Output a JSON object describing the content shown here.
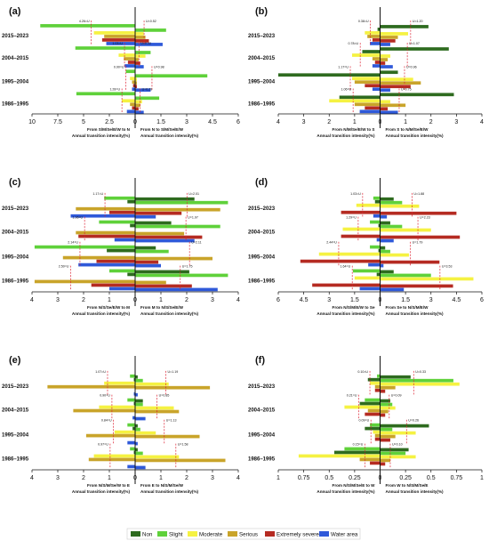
{
  "legend": {
    "placement": "bottom-center",
    "items": [
      {
        "key": "non",
        "label": "Non",
        "color": "#2e6b1f"
      },
      {
        "key": "slight",
        "label": "Slight",
        "color": "#5fd13a"
      },
      {
        "key": "moderate",
        "label": "Moderate",
        "color": "#f5f242"
      },
      {
        "key": "serious",
        "label": "Serious",
        "color": "#c9a42a"
      },
      {
        "key": "extreme",
        "label": "Extremely severe",
        "color": "#b52b22"
      },
      {
        "key": "water",
        "label": "Water area",
        "color": "#2f59d9"
      }
    ]
  },
  "chart_data": [
    {
      "id": "a",
      "panel_label": "(a)",
      "type": "bar",
      "categories": [
        "2015–2023",
        "2004–2015",
        "1995–2004",
        "1986–1995"
      ],
      "left_xlim": [
        10,
        0
      ],
      "right_xlim": [
        0,
        6
      ],
      "left_ticks": [
        "10",
        "7.5",
        "5",
        "2.5",
        "0"
      ],
      "right_ticks": [
        "1.5",
        "3",
        "4.5",
        "6"
      ],
      "left_xlabel": [
        "From S/M/Se/E/W to N",
        "Annual transition intensity(%)"
      ],
      "right_xlabel": [
        "From N to S/M/Se/E/W",
        "Annual transition intensity(%)"
      ],
      "uniform_left": [
        {
          "label": "4.26=U",
          "value": 4.26
        },
        {
          "label": "1.03=U",
          "value": 1.03
        },
        {
          "label": "0.90=U",
          "value": 0.9
        },
        {
          "label": "1.28=U",
          "value": 1.28
        }
      ],
      "uniform_right": [
        {
          "label": "U=0.52",
          "value": 0.52
        },
        {
          "label": "U=0.22",
          "value": 0.22
        },
        {
          "label": "U=0.98",
          "value": 0.98
        },
        {
          "label": "U=0.29",
          "value": 0.29
        }
      ],
      "bars": [
        {
          "left": {
            "water": 2.8,
            "extreme": 3.2,
            "serious": 3.0,
            "moderate": 4.0,
            "slight": 9.2
          },
          "right": {
            "water": 1.6,
            "extreme": 0.8,
            "serious": 0.6,
            "moderate": 0.5,
            "slight": 1.8
          }
        },
        {
          "left": {
            "water": 1.0,
            "extreme": 0.7,
            "serious": 1.1,
            "moderate": 1.6,
            "slight": 5.8
          },
          "right": {
            "water": 0.5,
            "extreme": 0.3,
            "serious": 0.2,
            "moderate": 0.6,
            "slight": 0.9
          }
        },
        {
          "left": {
            "water": 0.3,
            "extreme": 0.2,
            "serious": 0.3,
            "moderate": 0.5,
            "slight": 0.9
          },
          "right": {
            "water": 0.9,
            "extreme": 0.1,
            "serious": 0.1,
            "moderate": 0.1,
            "slight": 4.2
          }
        },
        {
          "left": {
            "water": 0.8,
            "extreme": 0.3,
            "serious": 0.5,
            "moderate": 1.3,
            "slight": 5.7
          },
          "right": {
            "water": 0.5,
            "extreme": 0.2,
            "serious": 0.3,
            "moderate": 0.4,
            "slight": 1.4
          }
        }
      ]
    },
    {
      "id": "b",
      "panel_label": "(b)",
      "type": "bar",
      "categories": [
        "2015–2023",
        "2004–2015",
        "1995–2004",
        "1986–1995"
      ],
      "left_xlim": [
        4,
        0
      ],
      "right_xlim": [
        0,
        4
      ],
      "left_ticks": [
        "4",
        "3",
        "2",
        "1",
        "0"
      ],
      "right_ticks": [
        "1",
        "2",
        "3",
        "4"
      ],
      "left_xlabel": [
        "From N/M/Se/E/W to S",
        "Annual transition intensity(%)"
      ],
      "right_xlabel": [
        "From S to N/M/Se/E/W",
        "Annual transition intensity(%)"
      ],
      "uniform_left": [
        {
          "label": "0.38=U",
          "value": 0.38
        },
        {
          "label": "0.78=U",
          "value": 0.78
        },
        {
          "label": "1.17=U",
          "value": 1.17
        },
        {
          "label": "1.06=U",
          "value": 1.06
        }
      ],
      "uniform_right": [
        {
          "label": "U=1.20",
          "value": 1.2
        },
        {
          "label": "U=1.07",
          "value": 1.07
        },
        {
          "label": "U=0.96",
          "value": 0.96
        },
        {
          "label": "U=0.75",
          "value": 0.75
        }
      ],
      "bars": [
        {
          "left": {
            "water": 0.4,
            "extreme": 0.3,
            "serious": 0.5,
            "moderate": 0.6,
            "non": 0.1
          },
          "right": {
            "water": 0.4,
            "extreme": 0.6,
            "serious": 0.7,
            "moderate": 1.1,
            "non": 1.9
          }
        },
        {
          "left": {
            "water": 0.3,
            "extreme": 0.2,
            "serious": 0.3,
            "moderate": 1.1,
            "non": 0.7
          },
          "right": {
            "water": 0.5,
            "extreme": 0.2,
            "serious": 0.3,
            "moderate": 0.4,
            "non": 2.7
          }
        },
        {
          "left": {
            "water": 0.3,
            "extreme": 0.6,
            "serious": 1.0,
            "moderate": 1.1,
            "non": 4.0
          },
          "right": {
            "water": 0.4,
            "extreme": 1.2,
            "serious": 1.6,
            "moderate": 1.3,
            "non": 0.7
          }
        },
        {
          "left": {
            "water": 0.8,
            "extreme": 0.6,
            "serious": 1.0,
            "moderate": 2.0,
            "non": 1.6
          },
          "right": {
            "water": 0.7,
            "extreme": 0.3,
            "serious": 1.0,
            "moderate": 0.4,
            "non": 2.9
          }
        }
      ]
    },
    {
      "id": "c",
      "panel_label": "(c)",
      "type": "bar",
      "categories": [
        "2015–2023",
        "2004–2015",
        "1995–2004",
        "1986–1995"
      ],
      "left_xlim": [
        4,
        0
      ],
      "right_xlim": [
        0,
        4
      ],
      "left_ticks": [
        "4",
        "3",
        "2",
        "1",
        "0"
      ],
      "right_ticks": [
        "1",
        "2",
        "3",
        "4"
      ],
      "left_xlabel": [
        "From N/S/Se/E/W to M",
        "Annual transition intensity(%)"
      ],
      "right_xlabel": [
        "From M to N/S/Se/E/W",
        "Annual transition intensity(%)"
      ],
      "uniform_left": [
        {
          "label": "1.17=U",
          "value": 1.17
        },
        {
          "label": "1.96=U",
          "value": 1.96
        },
        {
          "label": "2.14=U",
          "value": 2.14
        },
        {
          "label": "2.50=U",
          "value": 2.5
        }
      ],
      "uniform_right": [
        {
          "label": "U=2.01",
          "value": 2.01
        },
        {
          "label": "U=1.97",
          "value": 1.97
        },
        {
          "label": "U=2.11",
          "value": 2.11
        },
        {
          "label": "U=1.75",
          "value": 1.75
        }
      ],
      "bars": [
        {
          "left": {
            "water": 2.5,
            "extreme": 1.0,
            "serious": 2.3,
            "slight": 1.2,
            "non": 0.3
          },
          "right": {
            "water": 0.8,
            "extreme": 1.8,
            "serious": 3.3,
            "slight": 3.6,
            "non": 2.3
          }
        },
        {
          "left": {
            "water": 0.8,
            "extreme": 2.2,
            "serious": 2.3,
            "slight": 1.4,
            "non": 0.2
          },
          "right": {
            "water": 2.3,
            "extreme": 2.6,
            "serious": 1.9,
            "slight": 3.3,
            "non": 1.4
          }
        },
        {
          "left": {
            "water": 2.2,
            "extreme": 1.5,
            "serious": 2.8,
            "slight": 3.9,
            "non": 1.1
          },
          "right": {
            "water": 1.0,
            "extreme": 0.9,
            "serious": 3.0,
            "slight": 1.3,
            "non": 0.8
          }
        },
        {
          "left": {
            "water": 1.0,
            "extreme": 1.7,
            "serious": 3.9,
            "slight": 1.0,
            "non": 0.3
          },
          "right": {
            "water": 3.2,
            "extreme": 2.2,
            "serious": 1.2,
            "slight": 3.6,
            "non": 2.1
          }
        }
      ]
    },
    {
      "id": "d",
      "panel_label": "(d)",
      "type": "bar",
      "categories": [
        "2015–2023",
        "2004–2015",
        "1995–2004",
        "1986–1995"
      ],
      "left_xlim": [
        6,
        0
      ],
      "right_xlim": [
        0,
        6
      ],
      "left_ticks": [
        "6",
        "4.5",
        "3",
        "1.5",
        "0"
      ],
      "right_ticks": [
        "1.5",
        "3",
        "4.5",
        "6"
      ],
      "left_xlabel": [
        "From N/S/M/E/W to Se",
        "Annual transition intensity(%)"
      ],
      "right_xlabel": [
        "From Se to N/S/M/E/W",
        "Annual transition intensity(%)"
      ],
      "uniform_left": [
        {
          "label": "1.03=U",
          "value": 1.03
        },
        {
          "label": "1.29=U",
          "value": 1.29
        },
        {
          "label": "2.44=U",
          "value": 2.44
        },
        {
          "label": "1.64=U",
          "value": 1.64
        }
      ],
      "uniform_right": [
        {
          "label": "U=1.88",
          "value": 1.88
        },
        {
          "label": "U=2.23",
          "value": 2.23
        },
        {
          "label": "U=1.79",
          "value": 1.79
        },
        {
          "label": "U=3.53",
          "value": 3.53
        }
      ],
      "bars": [
        {
          "left": {
            "water": 0.4,
            "extreme": 2.3,
            "moderate": 1.4,
            "slight": 0.4,
            "non": 0.3
          },
          "right": {
            "water": 0.4,
            "extreme": 4.5,
            "moderate": 2.3,
            "slight": 1.3,
            "non": 0.8
          }
        },
        {
          "left": {
            "water": 0.2,
            "extreme": 2.3,
            "moderate": 2.2,
            "slight": 0.6,
            "non": 0.1
          },
          "right": {
            "water": 0.8,
            "extreme": 4.7,
            "moderate": 3.0,
            "slight": 1.3,
            "non": 0.6
          }
        },
        {
          "left": {
            "water": 0.7,
            "extreme": 4.7,
            "moderate": 3.6,
            "slight": 0.6,
            "non": 0.1
          },
          "right": {
            "water": 0.2,
            "extreme": 3.5,
            "moderate": 1.7,
            "slight": 0.6,
            "non": 0.3
          }
        },
        {
          "left": {
            "water": 1.2,
            "extreme": 4.0,
            "moderate": 1.5,
            "slight": 1.6,
            "non": 0.2
          },
          "right": {
            "water": 1.4,
            "extreme": 4.3,
            "moderate": 5.5,
            "slight": 3.0,
            "non": 0.8
          }
        }
      ]
    },
    {
      "id": "e",
      "panel_label": "(e)",
      "type": "bar",
      "categories": [
        "2015–2023",
        "2004–2015",
        "1995–2004",
        "1986–1995"
      ],
      "left_xlim": [
        4,
        0
      ],
      "right_xlim": [
        0,
        4
      ],
      "left_ticks": [
        "4",
        "3",
        "2",
        "1",
        "0"
      ],
      "right_ticks": [
        "1",
        "2",
        "3",
        "4"
      ],
      "left_xlabel": [
        "From N/S/M/Se/W to E",
        "Annual transition intensity(%)"
      ],
      "right_xlabel": [
        "From E to N/S/M/Se/W",
        "Annual transition intensity(%)"
      ],
      "uniform_left": [
        {
          "label": "1.07=U",
          "value": 1.07
        },
        {
          "label": "0.90=U",
          "value": 0.9
        },
        {
          "label": "0.84=U",
          "value": 0.84
        },
        {
          "label": "0.97=U",
          "value": 0.97
        }
      ],
      "uniform_right": [
        {
          "label": "U=1.19",
          "value": 1.19
        },
        {
          "label": "U=0.85",
          "value": 0.85
        },
        {
          "label": "U=1.13",
          "value": 1.13
        },
        {
          "label": "U=1.58",
          "value": 1.58
        }
      ],
      "bars": [
        {
          "left": {
            "water": 0.05,
            "serious": 3.4,
            "moderate": 1.2,
            "slight": 0.2,
            "non": 0.05
          },
          "right": {
            "water": 0.1,
            "serious": 2.9,
            "moderate": 1.3,
            "slight": 0.3,
            "non": 0.1
          }
        },
        {
          "left": {
            "water": 0.1,
            "serious": 2.4,
            "moderate": 1.4,
            "slight": 0.3,
            "non": 0.05
          },
          "right": {
            "water": 0.4,
            "serious": 1.7,
            "moderate": 1.5,
            "slight": 0.3,
            "non": 0.3
          }
        },
        {
          "left": {
            "water": 0.3,
            "serious": 1.9,
            "moderate": 0.8,
            "slight": 0.3,
            "non": 0.1
          },
          "right": {
            "water": 0.1,
            "serious": 2.5,
            "moderate": 0.8,
            "slight": 0.2,
            "non": 0.1
          }
        },
        {
          "left": {
            "water": 0.3,
            "serious": 1.8,
            "moderate": 1.6,
            "slight": 0.2,
            "non": 0.05
          },
          "right": {
            "water": 0.4,
            "serious": 3.5,
            "moderate": 1.7,
            "slight": 0.3,
            "non": 0.1
          }
        }
      ]
    },
    {
      "id": "f",
      "panel_label": "(f)",
      "type": "bar",
      "categories": [
        "2015–2023",
        "2004–2015",
        "1995–2004",
        "1986–1995"
      ],
      "left_xlim": [
        1,
        0
      ],
      "right_xlim": [
        0,
        1
      ],
      "left_ticks": [
        "1",
        "0.75",
        "0.5",
        "0.25",
        "0"
      ],
      "right_ticks": [
        "0.25",
        "0.5",
        "0.75",
        "1"
      ],
      "left_xlabel": [
        "From N/S/M/Se/E to W",
        "Annual transition intensity(%)"
      ],
      "right_xlabel": [
        "From W to N/S/M/Se/E",
        "Annual transition intensity(%)"
      ],
      "uniform_left": [
        {
          "label": "0.10=U",
          "value": 0.1
        },
        {
          "label": "0.21=U",
          "value": 0.21
        },
        {
          "label": "0.09=U",
          "value": 0.09
        },
        {
          "label": "0.15=U",
          "value": 0.15
        }
      ],
      "uniform_right": [
        {
          "label": "U=0.33",
          "value": 0.33
        },
        {
          "label": "U=0.09",
          "value": 0.09
        },
        {
          "label": "U=0.26",
          "value": 0.26
        },
        {
          "label": "U=0.10",
          "value": 0.1
        }
      ],
      "bars": [
        {
          "left": {
            "extreme": 0.05,
            "serious": 0.05,
            "moderate": 0.1,
            "slight": 0.03,
            "non": 0.12
          },
          "right": {
            "extreme": 0.05,
            "serious": 0.15,
            "moderate": 0.78,
            "slight": 0.72,
            "non": 0.3
          }
        },
        {
          "left": {
            "extreme": 0.15,
            "serious": 0.12,
            "moderate": 0.35,
            "slight": 0.15,
            "non": 0.2
          },
          "right": {
            "extreme": 0.05,
            "serious": 0.08,
            "moderate": 0.15,
            "slight": 0.12,
            "non": 0.1
          }
        },
        {
          "left": {
            "extreme": 0.05,
            "serious": 0.05,
            "moderate": 0.07,
            "slight": 0.1,
            "non": 0.15
          },
          "right": {
            "extreme": 0.1,
            "serious": 0.15,
            "moderate": 0.35,
            "slight": 0.12,
            "non": 0.48
          }
        },
        {
          "left": {
            "extreme": 0.1,
            "serious": 0.2,
            "moderate": 0.8,
            "slight": 0.35,
            "non": 0.45
          },
          "right": {
            "extreme": 0.05,
            "serious": 0.1,
            "moderate": 0.35,
            "slight": 0.25,
            "non": 0.28
          }
        }
      ]
    }
  ]
}
